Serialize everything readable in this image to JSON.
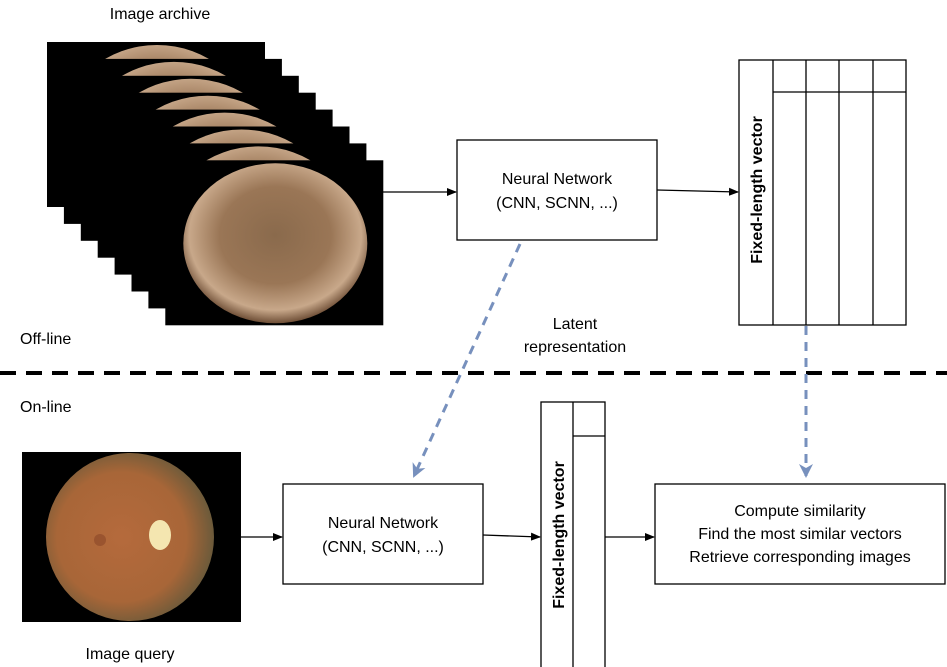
{
  "archive_label": "Image archive",
  "query_label": "Image query",
  "offline_label": "Off-line",
  "online_label": "On-line",
  "edge_label": [
    "Latent",
    "representation"
  ],
  "nodes": [
    {
      "lines": [
        "Neural Network",
        "(CNN, SCNN, ...)"
      ]
    },
    {
      "lines": [
        "Neural Network",
        "(CNN, SCNN, ...)"
      ]
    },
    {
      "lines": [
        "Compute similarity",
        "Find the most similar vectors",
        "Retrieve corresponding images"
      ]
    }
  ],
  "vectors": [
    {
      "label": "Fixed-length vector"
    },
    {
      "label": "Fixed-length vector"
    }
  ]
}
